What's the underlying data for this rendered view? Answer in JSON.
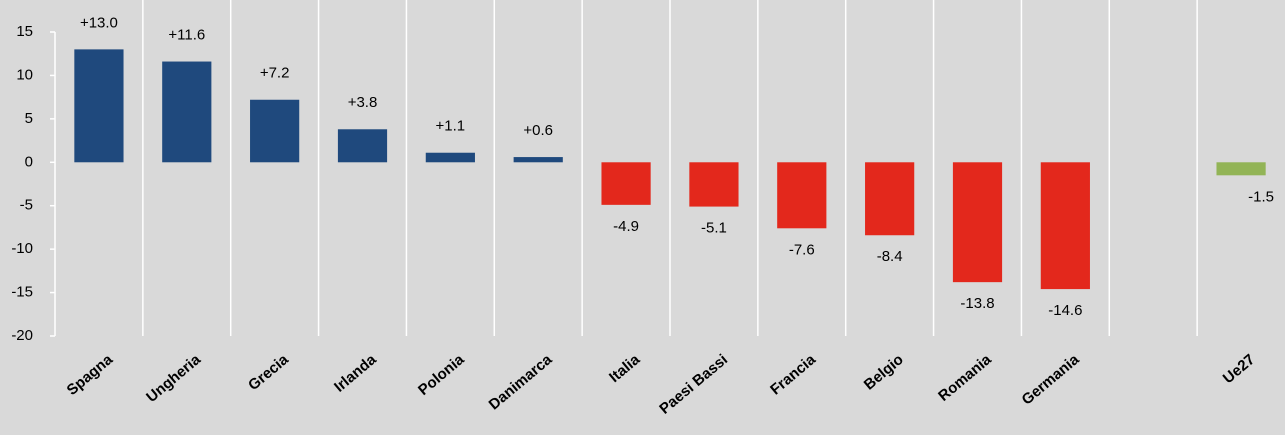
{
  "chart_data": {
    "type": "bar",
    "categories": [
      "Spagna",
      "Ungheria",
      "Grecia",
      "Irlanda",
      "Polonia",
      "Danimarca",
      "Italia",
      "Paesi Bassi",
      "Francia",
      "Belgio",
      "Romania",
      "Germania",
      null,
      "Ue27"
    ],
    "values": [
      13.0,
      11.6,
      7.2,
      3.8,
      1.1,
      0.6,
      -4.9,
      -5.1,
      -7.6,
      -8.4,
      -13.8,
      -14.6,
      null,
      -1.5
    ],
    "value_labels": [
      "+13.0",
      "+11.6",
      "+7.2",
      "+3.8",
      "+1.1",
      "+0.6",
      "-4.9",
      "-5.1",
      "-7.6",
      "-8.4",
      "-13.8",
      "-14.6",
      null,
      "-1.5"
    ],
    "colors": [
      "#1f497d",
      "#1f497d",
      "#1f497d",
      "#1f497d",
      "#1f497d",
      "#1f497d",
      "#e3281c",
      "#e3281c",
      "#e3281c",
      "#e3281c",
      "#e3281c",
      "#e3281c",
      null,
      "#92b456"
    ],
    "ylim": [
      -20,
      15
    ],
    "yticks": [
      15,
      10,
      5,
      0,
      -5,
      -10,
      -15,
      -20
    ]
  }
}
